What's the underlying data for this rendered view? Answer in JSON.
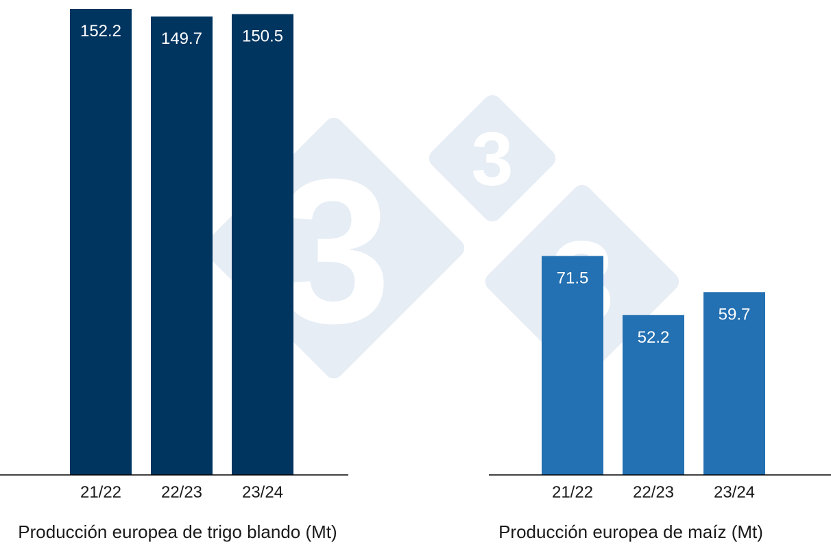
{
  "watermark": {
    "icon": "333-logo-icon",
    "color": "#e6edf5",
    "glyph": "3"
  },
  "chart_data": [
    {
      "type": "bar",
      "categories": [
        "21/22",
        "22/23",
        "23/24"
      ],
      "values": [
        152.2,
        149.7,
        150.5
      ],
      "value_labels": [
        "152.2",
        "149.7",
        "150.5"
      ],
      "title": "Producción europea de trigo blando (Mt)",
      "xlabel": "",
      "ylabel": "",
      "ylim": [
        0,
        152.2
      ],
      "grid": false,
      "legend": "none",
      "bar_color": "#003560",
      "label_color": "#ffffff"
    },
    {
      "type": "bar",
      "categories": [
        "21/22",
        "22/23",
        "23/24"
      ],
      "values": [
        71.5,
        52.2,
        59.7
      ],
      "value_labels": [
        "71.5",
        "52.2",
        "59.7"
      ],
      "title": "Producción europea de maíz (Mt)",
      "xlabel": "",
      "ylabel": "",
      "ylim": [
        0,
        152.2
      ],
      "grid": false,
      "legend": "none",
      "bar_color": "#2370b2",
      "label_color": "#ffffff"
    }
  ]
}
